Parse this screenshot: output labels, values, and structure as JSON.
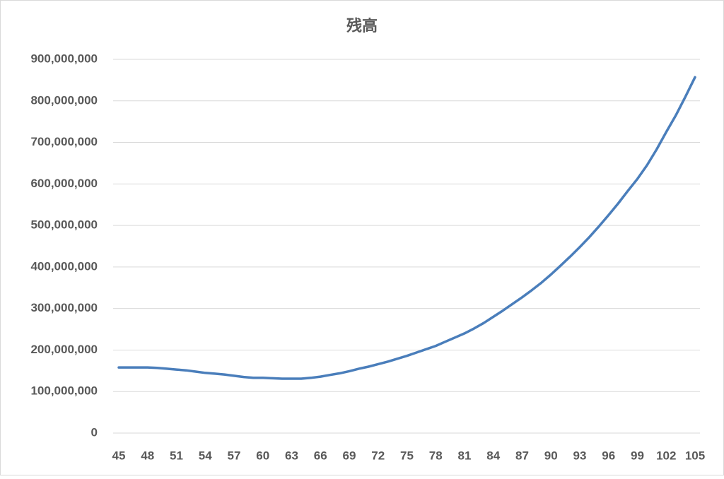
{
  "chart_data": {
    "type": "line",
    "title": "残高",
    "categories": [
      "45",
      null,
      null,
      "48",
      null,
      null,
      "51",
      null,
      null,
      "54",
      null,
      null,
      "57",
      null,
      null,
      "60",
      null,
      null,
      "63",
      null,
      null,
      "66",
      null,
      null,
      "69",
      null,
      null,
      "72",
      null,
      null,
      "75",
      null,
      null,
      "78",
      null,
      null,
      "81",
      null,
      null,
      "84",
      null,
      null,
      "87",
      null,
      null,
      "90",
      null,
      null,
      "93",
      null,
      null,
      "96",
      null,
      null,
      "99",
      null,
      null,
      "102",
      null,
      null,
      "105"
    ],
    "series": [
      {
        "color": "#4a7ebb",
        "values": [
          158000000,
          158000000,
          158000000,
          158000000,
          157000000,
          155000000,
          153000000,
          151000000,
          148000000,
          145000000,
          143000000,
          141000000,
          138000000,
          135000000,
          133000000,
          133000000,
          132000000,
          131000000,
          131000000,
          131000000,
          133000000,
          136000000,
          140000000,
          144000000,
          149000000,
          155000000,
          160000000,
          166000000,
          172000000,
          179000000,
          186000000,
          194000000,
          202000000,
          210000000,
          220000000,
          230000000,
          240000000,
          252000000,
          265000000,
          280000000,
          295000000,
          311000000,
          327000000,
          344000000,
          362000000,
          382000000,
          403000000,
          425000000,
          448000000,
          472000000,
          498000000,
          525000000,
          553000000,
          583000000,
          612000000,
          645000000,
          683000000,
          725000000,
          765000000,
          810000000,
          857000000
        ]
      }
    ],
    "ylim": [
      0,
      900000000
    ],
    "yticks": [
      0,
      {
        "value": 100000000,
        "label": "100,000,000"
      },
      {
        "value": 200000000,
        "label": "200,000,000"
      },
      {
        "value": 300000000,
        "label": "300,000,000"
      },
      {
        "value": 400000000,
        "label": "400,000,000"
      },
      {
        "value": 500000000,
        "label": "500,000,000"
      },
      {
        "value": 600000000,
        "label": "600,000,000"
      },
      {
        "value": 700000000,
        "label": "700,000,000"
      },
      {
        "value": 800000000,
        "label": "800,000,000"
      },
      {
        "value": 900000000,
        "label": "900,000,000"
      }
    ],
    "grid": true
  }
}
